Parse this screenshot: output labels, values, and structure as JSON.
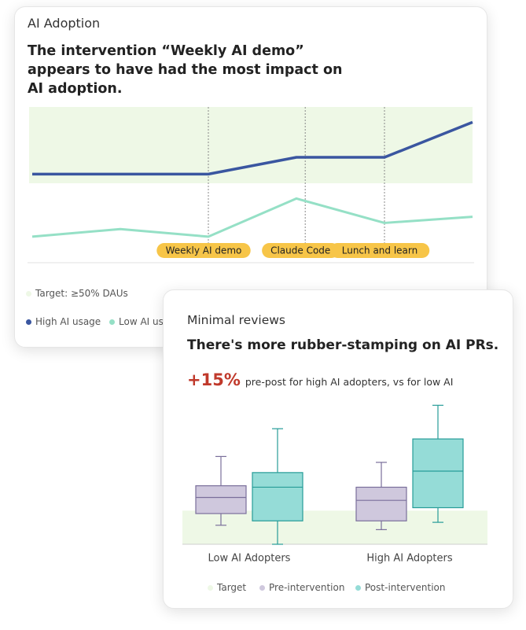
{
  "chart_data": [
    {
      "type": "line",
      "title": "AI Adoption",
      "subtitle": "The intervention “Weekly AI demo” appears to have had the most impact on AI adoption.",
      "x": [
        0,
        1,
        2,
        3,
        4,
        5
      ],
      "xlim": [
        0,
        5
      ],
      "ylim": [
        0,
        100
      ],
      "target": {
        "label": "Target: ≥50% DAUs",
        "from": 50,
        "to": 100,
        "color": "#eef8e6"
      },
      "annotations": [
        {
          "x": 2,
          "label": "Weekly AI demo"
        },
        {
          "x": 3.1,
          "label": "Claude Code"
        },
        {
          "x": 4,
          "label": "Lunch and learn"
        }
      ],
      "series": [
        {
          "name": "High AI usage",
          "color": "#3a56a0",
          "values": [
            56,
            56,
            56,
            67,
            67,
            90
          ]
        },
        {
          "name": "Low AI usage",
          "color": "#95e0c6",
          "values": [
            15,
            20,
            15,
            40,
            24,
            28
          ]
        }
      ]
    },
    {
      "type": "box",
      "title": "Minimal reviews",
      "subtitle": "There's more rubber-stamping on AI PRs.",
      "callout": "+15%",
      "callout_text": "pre-post for high AI adopters, vs for low AI",
      "categories": [
        "Low AI Adopters",
        "High AI Adopters"
      ],
      "ylim": [
        0,
        100
      ],
      "target": {
        "label": "Target",
        "from": 0,
        "to": 23,
        "color": "#eef8e6"
      },
      "series": [
        {
          "name": "Pre-intervention",
          "color": "#cfc8dd",
          "stroke": "#7a6f9b",
          "values": [
            {
              "min": 13,
              "q1": 21,
              "median": 32,
              "q3": 40,
              "max": 60
            },
            {
              "min": 10,
              "q1": 16,
              "median": 30,
              "q3": 39,
              "max": 56
            }
          ]
        },
        {
          "name": "Post-intervention",
          "color": "#95dcd7",
          "stroke": "#279c98",
          "values": [
            {
              "min": 0,
              "q1": 16,
              "median": 39,
              "q3": 49,
              "max": 79
            },
            {
              "min": 15,
              "q1": 25,
              "median": 50,
              "q3": 72,
              "max": 95
            }
          ]
        }
      ]
    }
  ]
}
